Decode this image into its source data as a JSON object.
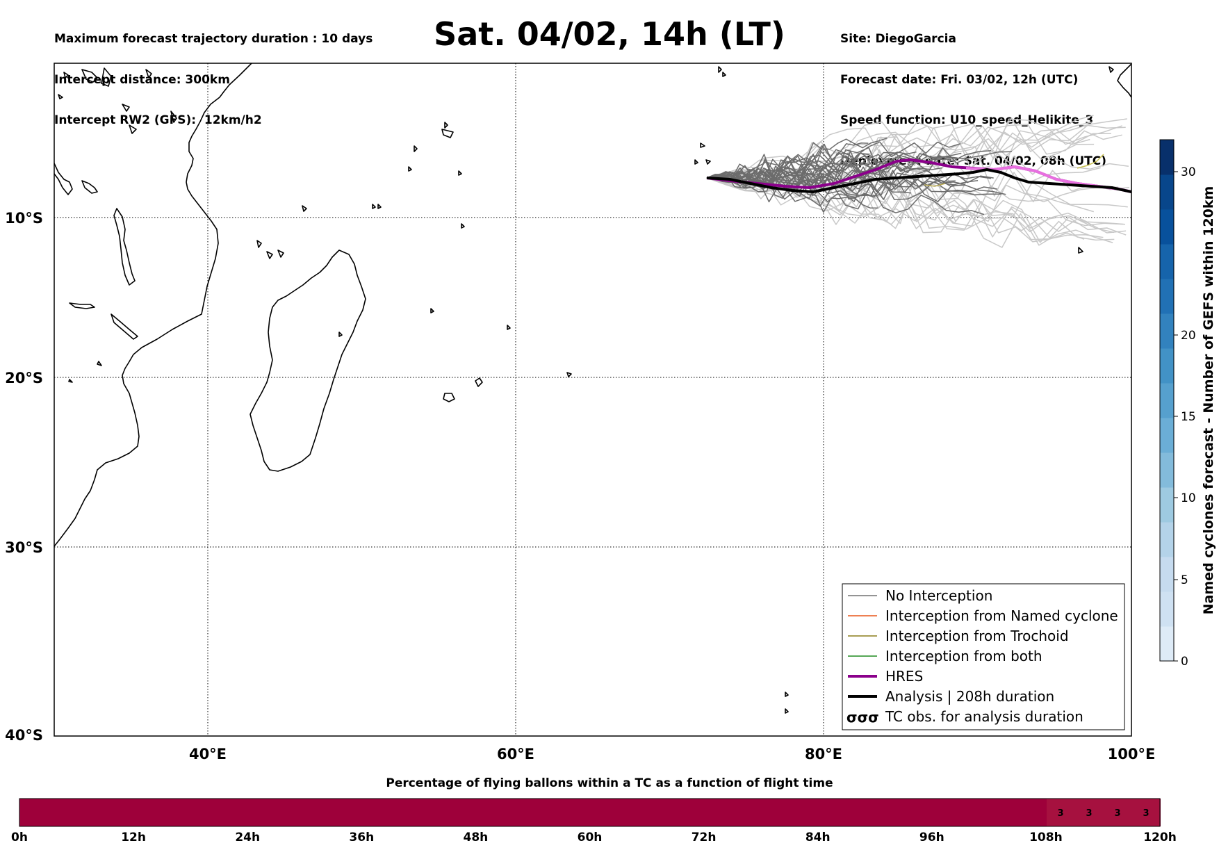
{
  "header": {
    "left": [
      "Maximum forecast trajectory duration : 10 days",
      "Intercept distance: 300km",
      "Intercept RW2 (GFS):  12km/h2"
    ],
    "title": "Sat. 04/02, 14h (LT)",
    "right": [
      "Site: DiegoGarcia",
      "Forecast date: Fri. 03/02, 12h (UTC)",
      "Speed function: U10_speed_Helikite_3",
      "Deployment date: Sat. 04/02, 08h (UTC)"
    ]
  },
  "map": {
    "lon_range": [
      30,
      100
    ],
    "lat_range": [
      -40,
      0
    ],
    "x_ticks": [
      "40°E",
      "60°E",
      "80°E",
      "100°E"
    ],
    "y_ticks": [
      "10°S",
      "20°S",
      "30°S",
      "40°S"
    ],
    "launch_site": {
      "lon": 72.4,
      "lat": -7.3
    }
  },
  "legend": {
    "items": [
      {
        "label": "No Interception",
        "color": "#707070",
        "style": "thin"
      },
      {
        "label": "Interception from Named cyclone",
        "color": "#e8561a",
        "style": "thin"
      },
      {
        "label": "Interception from Trochoid",
        "color": "#8b7d1a",
        "style": "thin"
      },
      {
        "label": "Interception from both",
        "color": "#1f8a1f",
        "style": "thin"
      },
      {
        "label": "HRES",
        "color": "#8b008b",
        "style": "thick"
      },
      {
        "label": "Analysis | 208h duration",
        "color": "#000000",
        "style": "thick"
      },
      {
        "label": "TC obs. for analysis duration",
        "color": "#000000",
        "style": "symbol",
        "symbol": "σσσ"
      }
    ]
  },
  "colorbar": {
    "label": "Named cyclones forecast - Number of GEFS within 120km",
    "ticks": [
      "0",
      "5",
      "10",
      "15",
      "20",
      "30"
    ],
    "colors": [
      "#deebf7",
      "#cfe1f2",
      "#c6dbef",
      "#b4d3e9",
      "#9ecae1",
      "#83bbdb",
      "#6baed6",
      "#56a0ce",
      "#4292c6",
      "#3282be",
      "#2171b5",
      "#1664ab",
      "#08519c",
      "#08468b",
      "#08306b"
    ]
  },
  "percentage_bar": {
    "title": "Percentage of flying ballons within a TC as a function of flight time",
    "ticks": [
      "0h",
      "12h",
      "24h",
      "36h",
      "48h",
      "60h",
      "72h",
      "84h",
      "96h",
      "108h",
      "120h"
    ],
    "main_color": "#9e003a",
    "cells": [
      {
        "label": "3",
        "color": "#a6113f"
      },
      {
        "label": "3",
        "color": "#a6113f"
      },
      {
        "label": "3",
        "color": "#a6113f"
      },
      {
        "label": "3",
        "color": "#a6113f"
      }
    ]
  }
}
